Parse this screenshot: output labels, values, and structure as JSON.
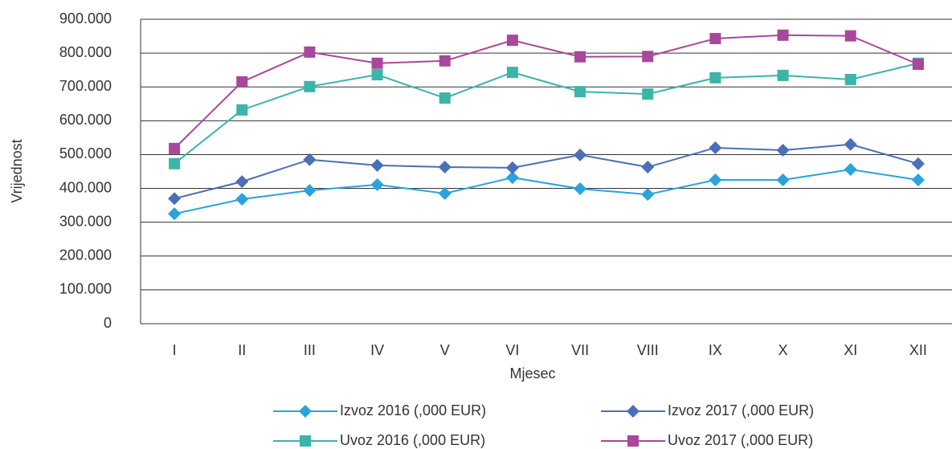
{
  "chart_data": {
    "type": "line",
    "x_label": "Mjesec",
    "y_label": "Vrijednost",
    "categories": [
      "I",
      "II",
      "III",
      "IV",
      "V",
      "VI",
      "VII",
      "VIII",
      "IX",
      "X",
      "XI",
      "XII"
    ],
    "ylim": [
      0,
      900000
    ],
    "yticks": [
      0,
      {
        "value": 100000,
        "label": "100.000"
      },
      {
        "value": 200000,
        "label": "200.000"
      },
      {
        "value": 300000,
        "label": "300.000"
      },
      {
        "value": 400000,
        "label": "400.000"
      },
      {
        "value": 500000,
        "label": "500.000"
      },
      {
        "value": 600000,
        "label": "600.000"
      },
      {
        "value": 700000,
        "label": "700.000"
      },
      {
        "value": 800000,
        "label": "800.000"
      },
      {
        "value": 900000,
        "label": "900.000"
      }
    ],
    "grid": true,
    "legend": "bottom",
    "series": [
      {
        "name": "Izvoz 2016 (,000 EUR)",
        "color": "#29a3dc",
        "marker": "diamond",
        "values": [
          325000,
          368000,
          394000,
          411000,
          385000,
          432000,
          399000,
          382000,
          425000,
          425000,
          456000,
          425000
        ]
      },
      {
        "name": "Izvoz 2017 (,000 EUR)",
        "color": "#4a6fb5",
        "marker": "diamond",
        "values": [
          370000,
          420000,
          485000,
          468000,
          463000,
          461000,
          499000,
          463000,
          520000,
          513000,
          530000,
          473000
        ]
      },
      {
        "name": "Uvoz 2016 (,000 EUR)",
        "color": "#3cb4a8",
        "marker": "square",
        "values": [
          473000,
          632000,
          701000,
          736000,
          667000,
          743000,
          686000,
          679000,
          727000,
          734000,
          722000,
          770000
        ]
      },
      {
        "name": "Uvoz 2017 (,000 EUR)",
        "color": "#a8479b",
        "marker": "square",
        "values": [
          518000,
          715000,
          803000,
          770000,
          777000,
          838000,
          789000,
          790000,
          843000,
          853000,
          851000,
          767000
        ]
      }
    ]
  }
}
